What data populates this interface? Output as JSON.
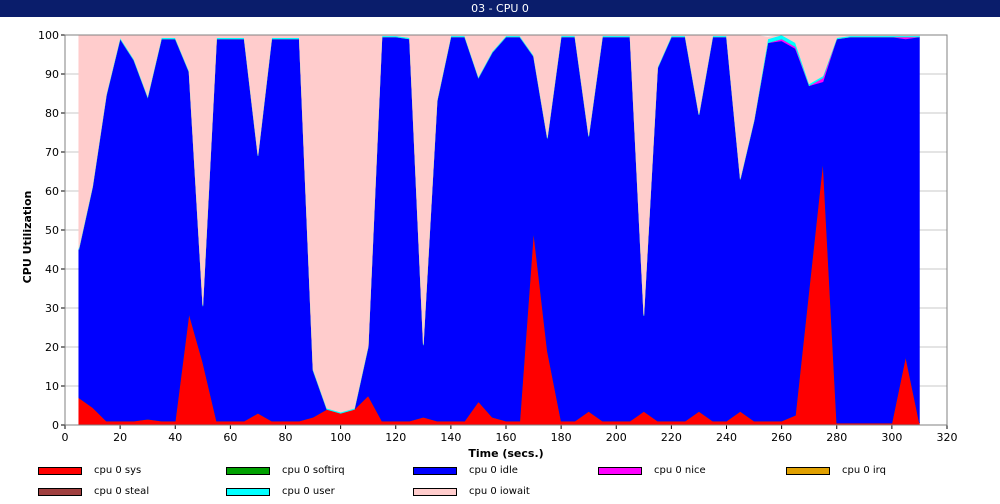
{
  "window": {
    "title": "03 - CPU 0"
  },
  "chart_data": {
    "type": "area",
    "stacked": true,
    "title": "03 - CPU 0",
    "xlabel": "Time (secs.)",
    "ylabel": "CPU Utilization",
    "xlim": [
      0,
      320
    ],
    "ylim": [
      0,
      100
    ],
    "xticks": [
      0,
      20,
      40,
      60,
      80,
      100,
      120,
      140,
      160,
      180,
      200,
      220,
      240,
      260,
      280,
      300,
      320
    ],
    "yticks": [
      0,
      10,
      20,
      30,
      40,
      50,
      60,
      70,
      80,
      90,
      100
    ],
    "grid": true,
    "legend_position": "bottom",
    "x": [
      5,
      10,
      15,
      20,
      25,
      30,
      35,
      40,
      45,
      50,
      55,
      60,
      65,
      70,
      75,
      80,
      85,
      90,
      95,
      100,
      105,
      110,
      115,
      120,
      125,
      130,
      135,
      140,
      145,
      150,
      155,
      160,
      165,
      170,
      175,
      180,
      185,
      190,
      195,
      200,
      205,
      210,
      215,
      220,
      225,
      230,
      235,
      240,
      245,
      250,
      255,
      260,
      265,
      270,
      275,
      280,
      285,
      290,
      295,
      300,
      305,
      310
    ],
    "series": [
      {
        "name": "cpu 0 sys",
        "color": "#ff0000",
        "values": [
          7,
          4.5,
          1,
          1,
          1,
          1.5,
          1,
          1,
          28.5,
          16,
          1,
          1,
          1,
          3,
          1,
          1,
          1,
          2,
          4,
          3,
          4,
          7.5,
          1,
          1,
          1,
          2,
          1,
          1,
          1,
          6,
          2,
          1,
          1,
          49.5,
          19,
          1,
          1,
          3.5,
          1,
          1,
          1,
          3.5,
          1,
          1,
          1,
          3.5,
          1,
          1,
          3.5,
          1,
          1,
          1,
          2.5,
          35,
          67.5,
          0.5,
          0.5,
          0.5,
          0.5,
          0.5,
          17.5,
          0.5
        ]
      },
      {
        "name": "cpu 0 softirq",
        "color": "#00a000",
        "values": [
          0,
          0,
          0,
          0,
          0,
          0,
          0,
          0,
          0,
          0,
          0,
          0,
          0,
          0,
          0,
          0,
          0,
          0,
          0,
          0,
          0,
          0,
          0,
          0,
          0,
          0,
          0,
          0,
          0,
          0,
          0,
          0,
          0,
          0,
          0,
          0,
          0,
          0,
          0,
          0,
          0,
          0,
          0,
          0,
          0,
          0,
          0,
          0,
          0,
          0,
          0,
          0,
          0,
          0,
          0,
          0,
          0,
          0,
          0,
          0,
          0,
          0
        ]
      },
      {
        "name": "cpu 0 idle",
        "color": "#0000ff",
        "values": [
          38,
          56.5,
          83.5,
          98,
          92.5,
          82.5,
          98,
          98,
          62,
          14.5,
          98,
          98,
          98,
          66,
          98,
          98,
          98,
          12,
          0,
          0,
          0,
          12.5,
          98.5,
          98.5,
          98,
          18.5,
          82,
          98.5,
          98.5,
          83,
          93.5,
          98.5,
          98.5,
          45,
          54.5,
          98.5,
          98.5,
          70.5,
          98.5,
          98.5,
          98.5,
          24.5,
          90.5,
          98.5,
          98.5,
          76,
          98.5,
          98.5,
          59.5,
          77,
          97,
          97.5,
          94,
          52,
          20.5,
          98.5,
          99,
          99,
          99,
          99,
          81.5,
          99
        ]
      },
      {
        "name": "cpu 0 nice",
        "color": "#ff00ff",
        "values": [
          0,
          0,
          0,
          0,
          0,
          0,
          0,
          0,
          0,
          0,
          0,
          0,
          0,
          0,
          0,
          0,
          0,
          0,
          0,
          0,
          0,
          0,
          0,
          0,
          0,
          0,
          0,
          0,
          0,
          0,
          0,
          0,
          0,
          0,
          0,
          0,
          0,
          0,
          0,
          0,
          0,
          0,
          0,
          0,
          0,
          0,
          0,
          0,
          0,
          0,
          0,
          0.5,
          0.5,
          0,
          1,
          0,
          0,
          0,
          0,
          0,
          0.5,
          0
        ]
      },
      {
        "name": "cpu 0 irq",
        "color": "#e0a000",
        "values": [
          0,
          0,
          0,
          0,
          0,
          0,
          0,
          0,
          0,
          0,
          0,
          0,
          0,
          0,
          0,
          0,
          0,
          0,
          0,
          0,
          0,
          0,
          0,
          0,
          0,
          0,
          0,
          0,
          0,
          0,
          0,
          0,
          0,
          0,
          0,
          0,
          0,
          0,
          0,
          0,
          0,
          0,
          0,
          0,
          0,
          0,
          0,
          0,
          0,
          0,
          0,
          0,
          0,
          0,
          0,
          0,
          0,
          0,
          0,
          0,
          0,
          0
        ]
      },
      {
        "name": "cpu 0 steal",
        "color": "#a04040",
        "values": [
          0,
          0,
          0,
          0,
          0,
          0,
          0,
          0,
          0,
          0,
          0,
          0,
          0,
          0,
          0,
          0,
          0,
          0,
          0,
          0,
          0,
          0,
          0,
          0,
          0,
          0,
          0,
          0,
          0,
          0,
          0,
          0,
          0,
          0,
          0,
          0,
          0,
          0,
          0,
          0,
          0,
          0,
          0,
          0,
          0,
          0,
          0,
          0,
          0,
          0,
          0,
          0,
          0,
          0,
          0,
          0,
          0,
          0,
          0,
          0,
          0,
          0
        ]
      },
      {
        "name": "cpu 0 user",
        "color": "#00ffff",
        "values": [
          0.3,
          0.3,
          0.3,
          0.3,
          0.3,
          0.3,
          0.3,
          0.3,
          0.3,
          0.3,
          0.3,
          0.3,
          0.3,
          0.3,
          0.3,
          0.3,
          0.3,
          0.3,
          0.3,
          0.3,
          0.3,
          0.3,
          0.3,
          0.3,
          0.3,
          0.3,
          0.3,
          0.3,
          0.3,
          0.3,
          0.3,
          0.3,
          0.3,
          0.3,
          0.3,
          0.3,
          0.3,
          0.3,
          0.3,
          0.3,
          0.3,
          0.3,
          0.3,
          0.3,
          0.3,
          0.3,
          0.3,
          0.3,
          0.3,
          0.3,
          1,
          1,
          1,
          0.5,
          0.5,
          0.3,
          0.3,
          0.3,
          0.3,
          0.3,
          0.3,
          0.3
        ]
      },
      {
        "name": "cpu 0 iowait",
        "color": "#ffcccc",
        "values": [
          54.7,
          38.7,
          15.2,
          0.7,
          6.2,
          15.7,
          0.7,
          0.7,
          9.2,
          69.2,
          0.7,
          0.7,
          0.7,
          30.7,
          0.7,
          0.7,
          0.7,
          85.7,
          95.7,
          96.7,
          95.7,
          79.7,
          0.2,
          0.2,
          0.7,
          79.2,
          16.7,
          0.2,
          0.2,
          10.7,
          4.2,
          0.2,
          0.2,
          5.2,
          26.2,
          0.2,
          0.2,
          25.7,
          0.2,
          0.2,
          0.2,
          71.7,
          8.2,
          0.2,
          0.2,
          20.2,
          0.2,
          0.2,
          36.7,
          21.7,
          0.5,
          0,
          2,
          12.5,
          10.5,
          0.7,
          0.2,
          0.2,
          0.2,
          0.2,
          0.2,
          0.2
        ]
      }
    ]
  }
}
